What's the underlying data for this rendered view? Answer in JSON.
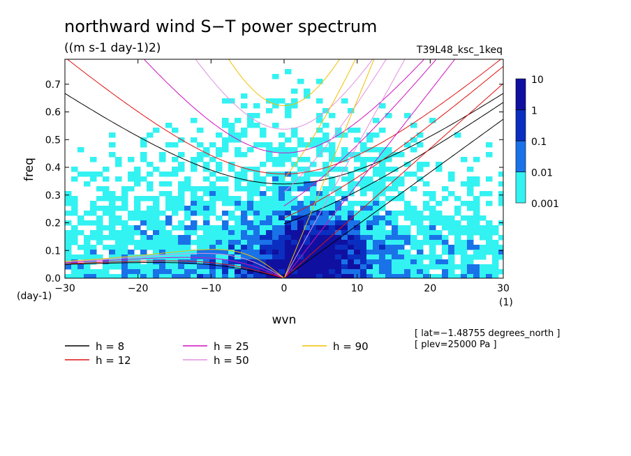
{
  "chart_data": {
    "type": "heatmap",
    "title": "northward wind S−T power spectrum",
    "units": "((m s-1 day-1)2)",
    "run_label": "T39L48_ksc_1keq",
    "xlabel": "wvn",
    "ylabel": "freq",
    "x_unit_label": "(1)",
    "y_unit_label": "(day-1)",
    "xlim": [
      -30,
      30
    ],
    "ylim": [
      0,
      0.79
    ],
    "xticks": [
      -30,
      -20,
      -10,
      0,
      10,
      20,
      30
    ],
    "xtick_labels": [
      "−30",
      "−20",
      "−10",
      "0",
      "10",
      "20",
      "30"
    ],
    "yticks": [
      0,
      0.1,
      0.2,
      0.3,
      0.4,
      0.5,
      0.6,
      0.7
    ],
    "ytick_labels": [
      "0.0",
      "0.1",
      "0.2",
      "0.3",
      "0.4",
      "0.5",
      "0.6",
      "0.7"
    ],
    "colorbar": {
      "levels": [
        "0.001",
        "0.01",
        "0.1",
        "1",
        "10"
      ],
      "colors": [
        "#33f2f2",
        "#1a72e8",
        "#0a2fc0",
        "#1010a0",
        "#4410a8"
      ]
    },
    "dispersion_curves": [
      {
        "h": 8,
        "label": "h =  8",
        "color": "#000000"
      },
      {
        "h": 12,
        "label": "h = 12",
        "color": "#e01010"
      },
      {
        "h": 25,
        "label": "h = 25",
        "color": "#d010c0"
      },
      {
        "h": 50,
        "label": "h = 50",
        "color": "#e090e0"
      },
      {
        "h": 90,
        "label": "h = 90",
        "color": "#f0c000"
      }
    ],
    "annotations": [
      "[ lat=−1.48755 degrees_north ]",
      "[ plev=25000 Pa ]"
    ]
  }
}
